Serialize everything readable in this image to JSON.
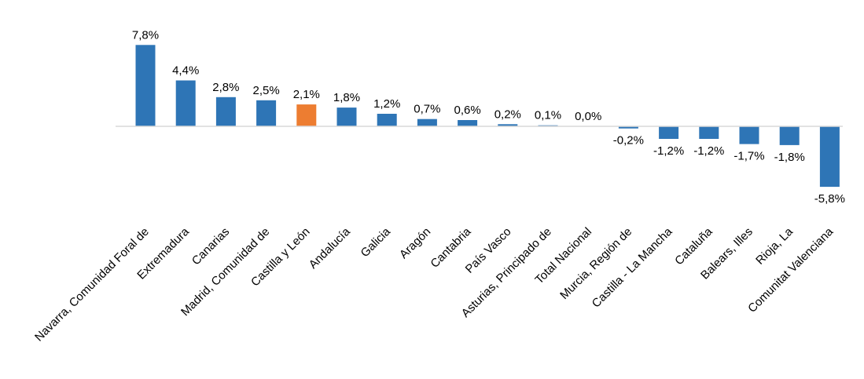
{
  "chart_data": {
    "type": "bar",
    "categories": [
      "Navarra, Comunidad Foral de",
      "Extremadura",
      "Canarias",
      "Madrid, Comunidad de",
      "Castilla y León",
      "Andalucía",
      "Galicia",
      "Aragón",
      "Cantabria",
      "País Vasco",
      "Asturias, Principado de",
      "Total Nacional",
      "Murcia, Región de",
      "Castilla - La Mancha",
      "Cataluña",
      "Balears, Illes",
      "Rioja, La",
      "Comunitat Valenciana"
    ],
    "values": [
      7.8,
      4.4,
      2.8,
      2.5,
      2.1,
      1.8,
      1.2,
      0.7,
      0.6,
      0.2,
      0.1,
      0.0,
      -0.2,
      -1.2,
      -1.2,
      -1.7,
      -1.8,
      -5.8
    ],
    "data_labels": [
      "7,8%",
      "4,4%",
      "2,8%",
      "2,5%",
      "2,1%",
      "1,8%",
      "1,2%",
      "0,7%",
      "0,6%",
      "0,2%",
      "0,1%",
      "0,0%",
      "-0,2%",
      "-1,2%",
      "-1,2%",
      "-1,7%",
      "-1,8%",
      "-5,8%"
    ],
    "highlight_category": "Castilla y León",
    "colors": {
      "default": "#2E75B6",
      "highlight": "#ED7D31",
      "axis": "#D9D9D9"
    },
    "title": "",
    "xlabel": "",
    "ylabel": "",
    "grid": false,
    "legend": "none"
  }
}
